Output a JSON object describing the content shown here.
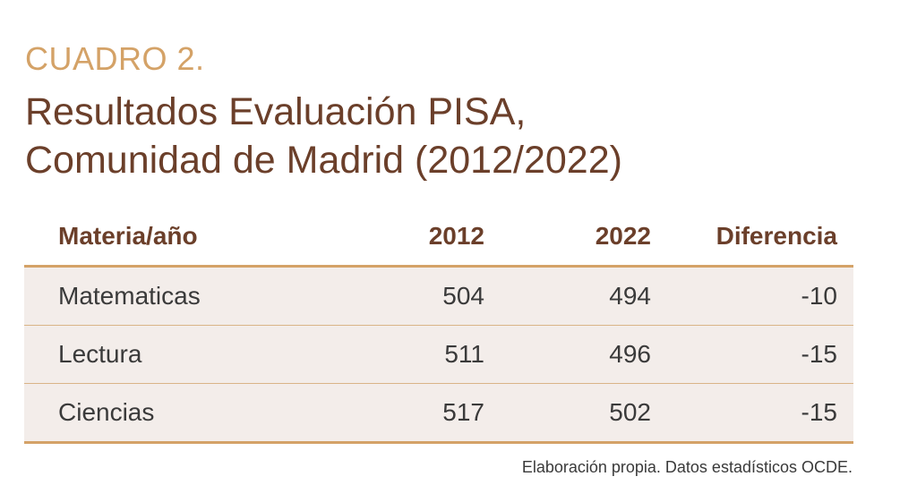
{
  "label": "CUADRO 2.",
  "title": {
    "line1": "Resultados Evaluación PISA,",
    "line2_main": "Comunidad de Madrid",
    "line2_years": "(2012/2022)"
  },
  "table": {
    "headers": [
      "Materia/año",
      "2012",
      "2022",
      "Diferencia"
    ],
    "rows": [
      [
        "Matematicas",
        "504",
        "494",
        "-10"
      ],
      [
        "Lectura",
        "511",
        "496",
        "-15"
      ],
      [
        "Ciencias",
        "517",
        "502",
        "-15"
      ]
    ]
  },
  "source": "Elaboración propia. Datos estadísticos OCDE.",
  "colors": {
    "label": "#d4a267",
    "title": "#6b3f2a",
    "row_background": "#f3edea",
    "rule": "#d4a267"
  }
}
